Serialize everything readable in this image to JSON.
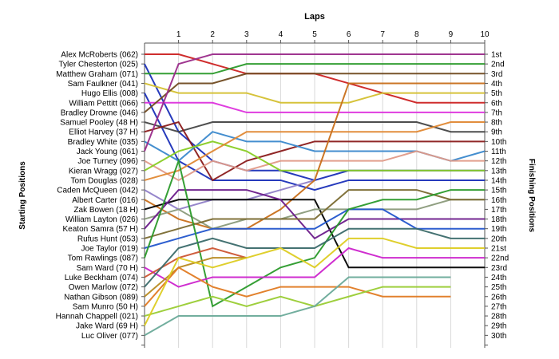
{
  "chart_data": {
    "type": "line",
    "title": "Laps",
    "ylabel_left": "Starting Positions",
    "ylabel_right": "Finishing Positions",
    "x": [
      0,
      1,
      2,
      3,
      4,
      5,
      6,
      7,
      8,
      9,
      10
    ],
    "x_tick_labels": [
      "1",
      "2",
      "3",
      "4",
      "5",
      "6",
      "7",
      "8",
      "9",
      "10"
    ],
    "position_labels": [
      "1st",
      "2nd",
      "3rd",
      "4th",
      "5th",
      "6th",
      "7th",
      "8th",
      "9th",
      "10th",
      "11th",
      "12th",
      "13th",
      "14th",
      "15th",
      "16th",
      "17th",
      "18th",
      "19th",
      "20th",
      "21st",
      "22nd",
      "23rd",
      "24th",
      "25th",
      "26th",
      "27th",
      "28th",
      "29th",
      "30th"
    ],
    "grid": "vertical",
    "series": [
      {
        "name": "Alex McRoberts (062)",
        "color": "#cc2222",
        "positions": [
          1,
          1,
          2,
          3,
          3,
          3,
          4,
          5,
          6,
          6,
          6
        ]
      },
      {
        "name": "Tyler Chesterton (025)",
        "color": "#1a2fb8",
        "positions": [
          2,
          9,
          12,
          13,
          13,
          14,
          13,
          13,
          13,
          13,
          13
        ]
      },
      {
        "name": "Matthew Graham (071)",
        "color": "#2a9a2a",
        "positions": [
          3,
          3,
          3,
          2,
          2,
          2,
          2,
          2,
          2,
          2,
          2
        ]
      },
      {
        "name": "Sam Faulkner (041)",
        "color": "#d4c030",
        "positions": [
          4,
          5,
          5,
          5,
          6,
          6,
          6,
          5,
          5,
          5,
          5
        ]
      },
      {
        "name": "Hugo Ellis (008)",
        "color": "#1a2fb8",
        "positions": [
          5,
          12,
          14,
          14,
          14,
          15,
          14,
          14,
          14,
          14,
          14
        ]
      },
      {
        "name": "William Pettitt (066)",
        "color": "#dd33dd",
        "positions": [
          6,
          6,
          6,
          7,
          7,
          7,
          7,
          7,
          7,
          7,
          7
        ]
      },
      {
        "name": "Bradley Drowne (046)",
        "color": "#704a20",
        "positions": [
          7,
          4,
          4,
          3,
          3,
          3,
          3,
          3,
          3,
          3,
          3
        ]
      },
      {
        "name": "Samuel Pooley (48 H)",
        "color": "#444444",
        "positions": [
          8,
          9,
          8,
          8,
          8,
          8,
          8,
          8,
          8,
          9,
          9
        ]
      },
      {
        "name": "Elliot Harvey (37 H)",
        "color": "#8a1a1a",
        "positions": [
          9,
          8,
          14,
          12,
          11,
          10,
          10,
          10,
          10,
          10,
          10
        ]
      },
      {
        "name": "Bradley White (035)",
        "color": "#3a88cc",
        "positions": [
          10,
          12,
          9,
          10,
          10,
          11,
          11,
          11,
          11,
          12,
          11
        ]
      },
      {
        "name": "Jack Young (061)",
        "color": "#9a2b8a",
        "positions": [
          11,
          2,
          1,
          1,
          1,
          1,
          1,
          1,
          1,
          1,
          1
        ]
      },
      {
        "name": "Joe Turney (096)",
        "color": "#e09a88",
        "positions": [
          12,
          14,
          12,
          13,
          12,
          12,
          12,
          12,
          11,
          12,
          12
        ]
      },
      {
        "name": "Kieran Wragg (027)",
        "color": "#88cc22",
        "positions": [
          13,
          11,
          10,
          11,
          13,
          13,
          13,
          13,
          13,
          13,
          13
        ]
      },
      {
        "name": "Tom Douglas (028)",
        "color": "#e08833",
        "positions": [
          14,
          13,
          11,
          9,
          9,
          9,
          9,
          9,
          9,
          8,
          8
        ]
      },
      {
        "name": "Caden McQueen (042)",
        "color": "#9080c8",
        "positions": [
          15,
          17,
          16,
          16,
          15,
          14
        ]
      },
      {
        "name": "Albert Carter (016)",
        "color": "#c86f1a",
        "positions": [
          16,
          18,
          19,
          19,
          17,
          14,
          4,
          4,
          4,
          4,
          4
        ]
      },
      {
        "name": "Zak Bowen (18 H)",
        "color": "#000000",
        "positions": [
          17,
          16,
          16,
          16,
          16,
          16,
          23,
          23,
          23,
          23,
          23
        ]
      },
      {
        "name": "William Layton (026)",
        "color": "#8a9a7a",
        "positions": [
          18,
          17,
          19,
          18,
          18,
          17,
          17,
          17,
          17,
          16,
          16
        ]
      },
      {
        "name": "Keaton Samra (57 H)",
        "color": "#6a1a8a",
        "positions": [
          19,
          15,
          15,
          15,
          16,
          20,
          18,
          18,
          18,
          18,
          18
        ]
      },
      {
        "name": "Rufus Hunt (053)",
        "color": "#7a6a30",
        "positions": [
          20,
          19,
          18,
          18,
          18,
          18,
          15,
          15,
          15,
          16,
          16
        ]
      },
      {
        "name": "Joe Taylor (019)",
        "color": "#2255cc",
        "positions": [
          21,
          20,
          19,
          19,
          19,
          19,
          17,
          17,
          19,
          19,
          19
        ]
      },
      {
        "name": "Tom Rawlings (087)",
        "color": "#2a9a2a",
        "positions": [
          22,
          12,
          27,
          25,
          23,
          22,
          17,
          16,
          16,
          15,
          15
        ]
      },
      {
        "name": "Sam Ward (70 H)",
        "color": "#cc22cc",
        "positions": [
          23,
          25,
          24,
          24,
          24,
          24,
          21,
          22,
          22,
          22,
          22
        ]
      },
      {
        "name": "Luke Beckham (074)",
        "color": "#cc5533",
        "positions": [
          24,
          22,
          21,
          22
        ]
      },
      {
        "name": "Owen Marlow (072)",
        "color": "#3a6a6a",
        "positions": [
          25,
          21,
          20,
          21,
          21,
          21,
          19,
          19,
          19,
          20,
          20
        ]
      },
      {
        "name": "Nathan Gibson (089)",
        "color": "#b88a20",
        "positions": [
          26,
          23,
          22,
          22
        ]
      },
      {
        "name": "Sam Munro (50 H)",
        "color": "#e07a22",
        "positions": [
          27,
          23,
          25,
          26,
          25,
          25,
          25,
          26,
          26,
          26
        ]
      },
      {
        "name": "Hannah Chappell (021)",
        "color": "#99cc33",
        "positions": [
          28,
          27,
          26,
          27,
          26,
          27,
          26,
          25,
          25,
          25
        ]
      },
      {
        "name": "Jake Ward (69 H)",
        "color": "#ddcc22",
        "positions": [
          29,
          22,
          23,
          22,
          21,
          23,
          20,
          20,
          21,
          21,
          21
        ]
      },
      {
        "name": "Luc Oliver (077)",
        "color": "#6aaa99",
        "positions": [
          30,
          28,
          28,
          28,
          28,
          27,
          24,
          24,
          24,
          24
        ]
      }
    ]
  }
}
